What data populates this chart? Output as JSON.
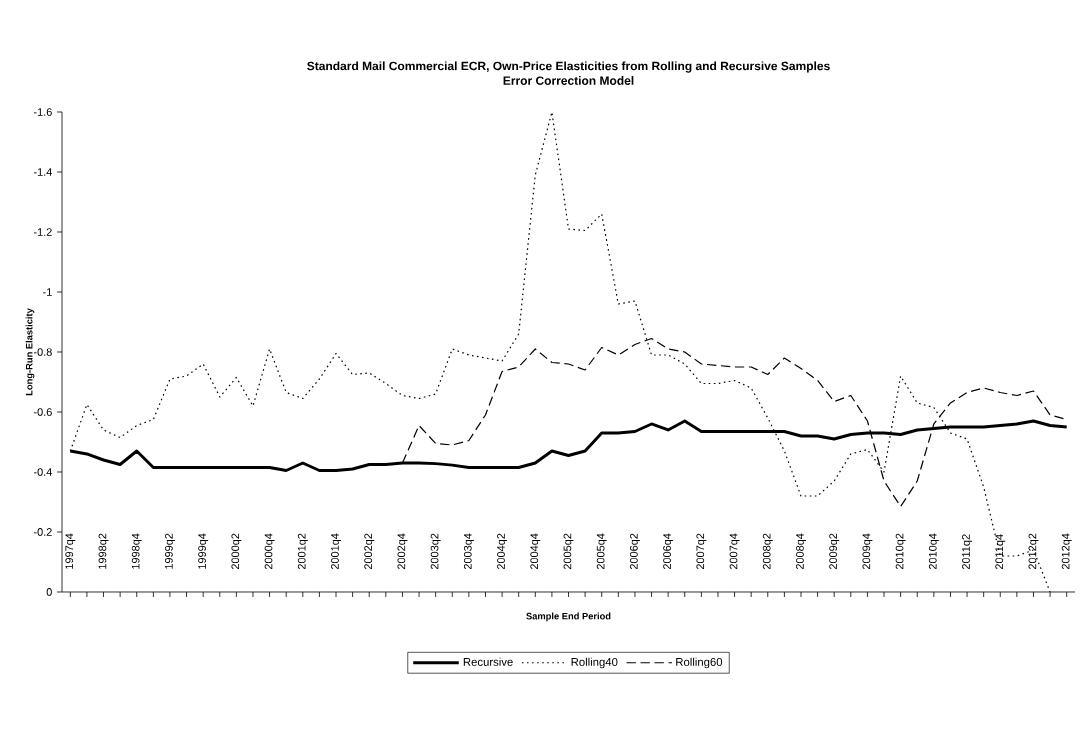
{
  "chart_data": {
    "type": "line",
    "title": "Standard Mail Commercial ECR, Own-Price Elasticities from Rolling and Recursive Samples",
    "subtitle": "Error Correction Model",
    "xlabel": "Sample End Period",
    "ylabel": "Long-Run Elasticity",
    "categories": [
      "1997q4",
      null,
      "1998q2",
      null,
      "1998q4",
      null,
      "1999q2",
      null,
      "1999q4",
      null,
      "2000q2",
      null,
      "2000q4",
      null,
      "2001q2",
      null,
      "2001q4",
      null,
      "2002q2",
      null,
      "2002q4",
      null,
      "2003q2",
      null,
      "2003q4",
      null,
      "2004q2",
      null,
      "2004q4",
      null,
      "2005q2",
      null,
      "2005q4",
      null,
      "2006q2",
      null,
      "2006q4",
      null,
      "2007q2",
      null,
      "2007q4",
      null,
      "2008q2",
      null,
      "2008q4",
      null,
      "2009q2",
      null,
      "2009q4",
      null,
      "2010q2",
      null,
      "2010q4",
      null,
      "2011q2",
      null,
      "2011q4",
      null,
      "2012q2",
      null,
      "2012q4"
    ],
    "series": [
      {
        "name": "Recursive",
        "color": "#000000",
        "line_style": "solid",
        "values": [
          -0.47,
          -0.46,
          -0.44,
          -0.425,
          -0.47,
          -0.415,
          -0.415,
          -0.415,
          -0.415,
          -0.415,
          -0.415,
          -0.415,
          -0.415,
          -0.405,
          -0.43,
          -0.405,
          -0.405,
          -0.41,
          -0.425,
          -0.425,
          -0.43,
          -0.43,
          -0.428,
          -0.423,
          -0.415,
          -0.415,
          -0.415,
          -0.415,
          -0.43,
          -0.47,
          -0.455,
          -0.47,
          -0.53,
          -0.53,
          -0.535,
          -0.56,
          -0.54,
          -0.57,
          -0.535,
          -0.535,
          -0.535,
          -0.535,
          -0.535,
          -0.535,
          -0.52,
          -0.52,
          -0.51,
          -0.525,
          -0.53,
          -0.53,
          -0.525,
          -0.54,
          -0.545,
          -0.55,
          -0.55,
          -0.55,
          -0.555,
          -0.56,
          -0.57,
          -0.555,
          -0.55
        ]
      },
      {
        "name": "Rolling40",
        "color": "#000000",
        "line_style": "dotted",
        "values": [
          -0.47,
          -0.625,
          -0.54,
          -0.515,
          -0.555,
          -0.575,
          -0.71,
          -0.72,
          -0.76,
          -0.65,
          -0.715,
          -0.62,
          -0.81,
          -0.665,
          -0.645,
          -0.71,
          -0.795,
          -0.725,
          -0.73,
          -0.695,
          -0.655,
          -0.645,
          -0.66,
          -0.81,
          -0.79,
          -0.78,
          -0.77,
          -0.86,
          -1.39,
          -1.6,
          -1.21,
          -1.205,
          -1.26,
          -0.96,
          -0.97,
          -0.79,
          -0.79,
          -0.76,
          -0.695,
          -0.695,
          -0.705,
          -0.68,
          -0.58,
          -0.47,
          -0.32,
          -0.32,
          -0.37,
          -0.46,
          -0.475,
          -0.4,
          -0.72,
          -0.63,
          -0.615,
          -0.53,
          -0.51,
          -0.35,
          -0.12,
          -0.12,
          -0.14,
          0,
          null
        ]
      },
      {
        "name": "Rolling60",
        "color": "#000000",
        "line_style": "dashed",
        "values": [
          null,
          null,
          null,
          null,
          null,
          null,
          null,
          null,
          null,
          null,
          null,
          null,
          null,
          null,
          null,
          null,
          null,
          null,
          null,
          null,
          -0.43,
          -0.555,
          -0.495,
          -0.49,
          -0.505,
          -0.59,
          -0.735,
          -0.75,
          -0.81,
          -0.765,
          -0.76,
          -0.74,
          -0.815,
          -0.79,
          -0.825,
          -0.845,
          -0.81,
          -0.8,
          -0.76,
          -0.755,
          -0.75,
          -0.75,
          -0.725,
          -0.78,
          -0.745,
          -0.705,
          -0.635,
          -0.655,
          -0.57,
          -0.37,
          -0.285,
          -0.37,
          -0.56,
          -0.63,
          -0.665,
          -0.68,
          -0.665,
          -0.655,
          -0.67,
          -0.59,
          -0.575
        ]
      }
    ],
    "ylim": [
      0,
      -1.6
    ],
    "yticks": [
      0,
      -0.2,
      -0.4,
      -0.6,
      -0.8,
      -1,
      -1.2,
      -1.4,
      -1.6
    ],
    "grid": false,
    "legend": "bottom"
  }
}
